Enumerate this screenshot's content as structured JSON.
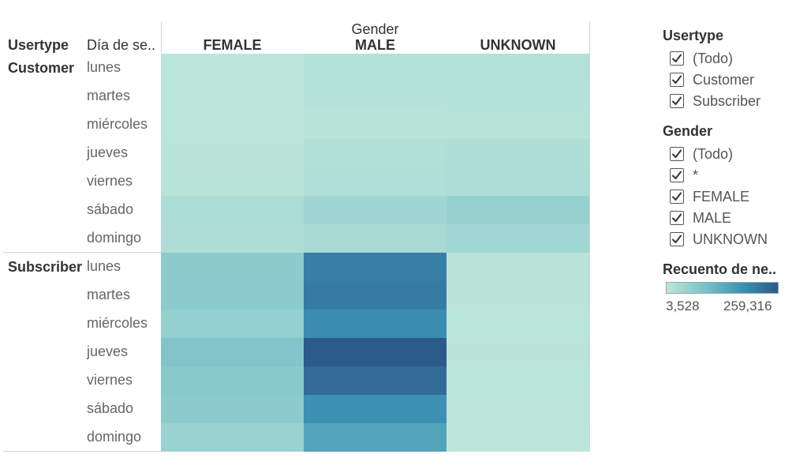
{
  "headers": {
    "row_header_1": "Usertype",
    "row_header_2": "Día de se..",
    "column_group_title": "Gender",
    "columns": [
      "FEMALE",
      "MALE",
      "UNKNOWN"
    ]
  },
  "filters": [
    {
      "title": "Usertype",
      "items": [
        {
          "label": "(Todo)",
          "checked": true
        },
        {
          "label": "Customer",
          "checked": true
        },
        {
          "label": "Subscriber",
          "checked": true
        }
      ]
    },
    {
      "title": "Gender",
      "items": [
        {
          "label": "(Todo)",
          "checked": true
        },
        {
          "label": "*",
          "checked": true
        },
        {
          "label": "FEMALE",
          "checked": true
        },
        {
          "label": "MALE",
          "checked": true
        },
        {
          "label": "UNKNOWN",
          "checked": true
        }
      ]
    }
  ],
  "color_legend": {
    "title": "Recuento de ne..",
    "min_label": "3,528",
    "max_label": "259,316",
    "min": 3528,
    "max": 259316,
    "colors": [
      "#bde6da",
      "#7dc3c9",
      "#3d94b4",
      "#2c5a8a"
    ]
  },
  "chart_data": {
    "type": "heatmap",
    "x_title": "Gender",
    "x_categories": [
      "FEMALE",
      "MALE",
      "UNKNOWN"
    ],
    "row_groups": [
      {
        "name": "Customer",
        "days": [
          "lunes",
          "martes",
          "miércoles",
          "jueves",
          "viernes",
          "sábado",
          "domingo"
        ],
        "values": [
          [
            5000,
            16000,
            17000
          ],
          [
            5000,
            14000,
            15000
          ],
          [
            6000,
            12000,
            12000
          ],
          [
            8000,
            19000,
            22000
          ],
          [
            9000,
            20000,
            25000
          ],
          [
            26000,
            42000,
            55000
          ],
          [
            22000,
            32000,
            41000
          ]
        ]
      },
      {
        "name": "Subscriber",
        "days": [
          "lunes",
          "martes",
          "miércoles",
          "jueves",
          "viernes",
          "sábado",
          "domingo"
        ],
        "values": [
          [
            68000,
            205000,
            8000
          ],
          [
            70000,
            210000,
            8000
          ],
          [
            58000,
            185000,
            7000
          ],
          [
            84000,
            259316,
            7500
          ],
          [
            74000,
            235000,
            7000
          ],
          [
            70000,
            180000,
            6000
          ],
          [
            52000,
            145000,
            3528
          ]
        ]
      }
    ]
  }
}
